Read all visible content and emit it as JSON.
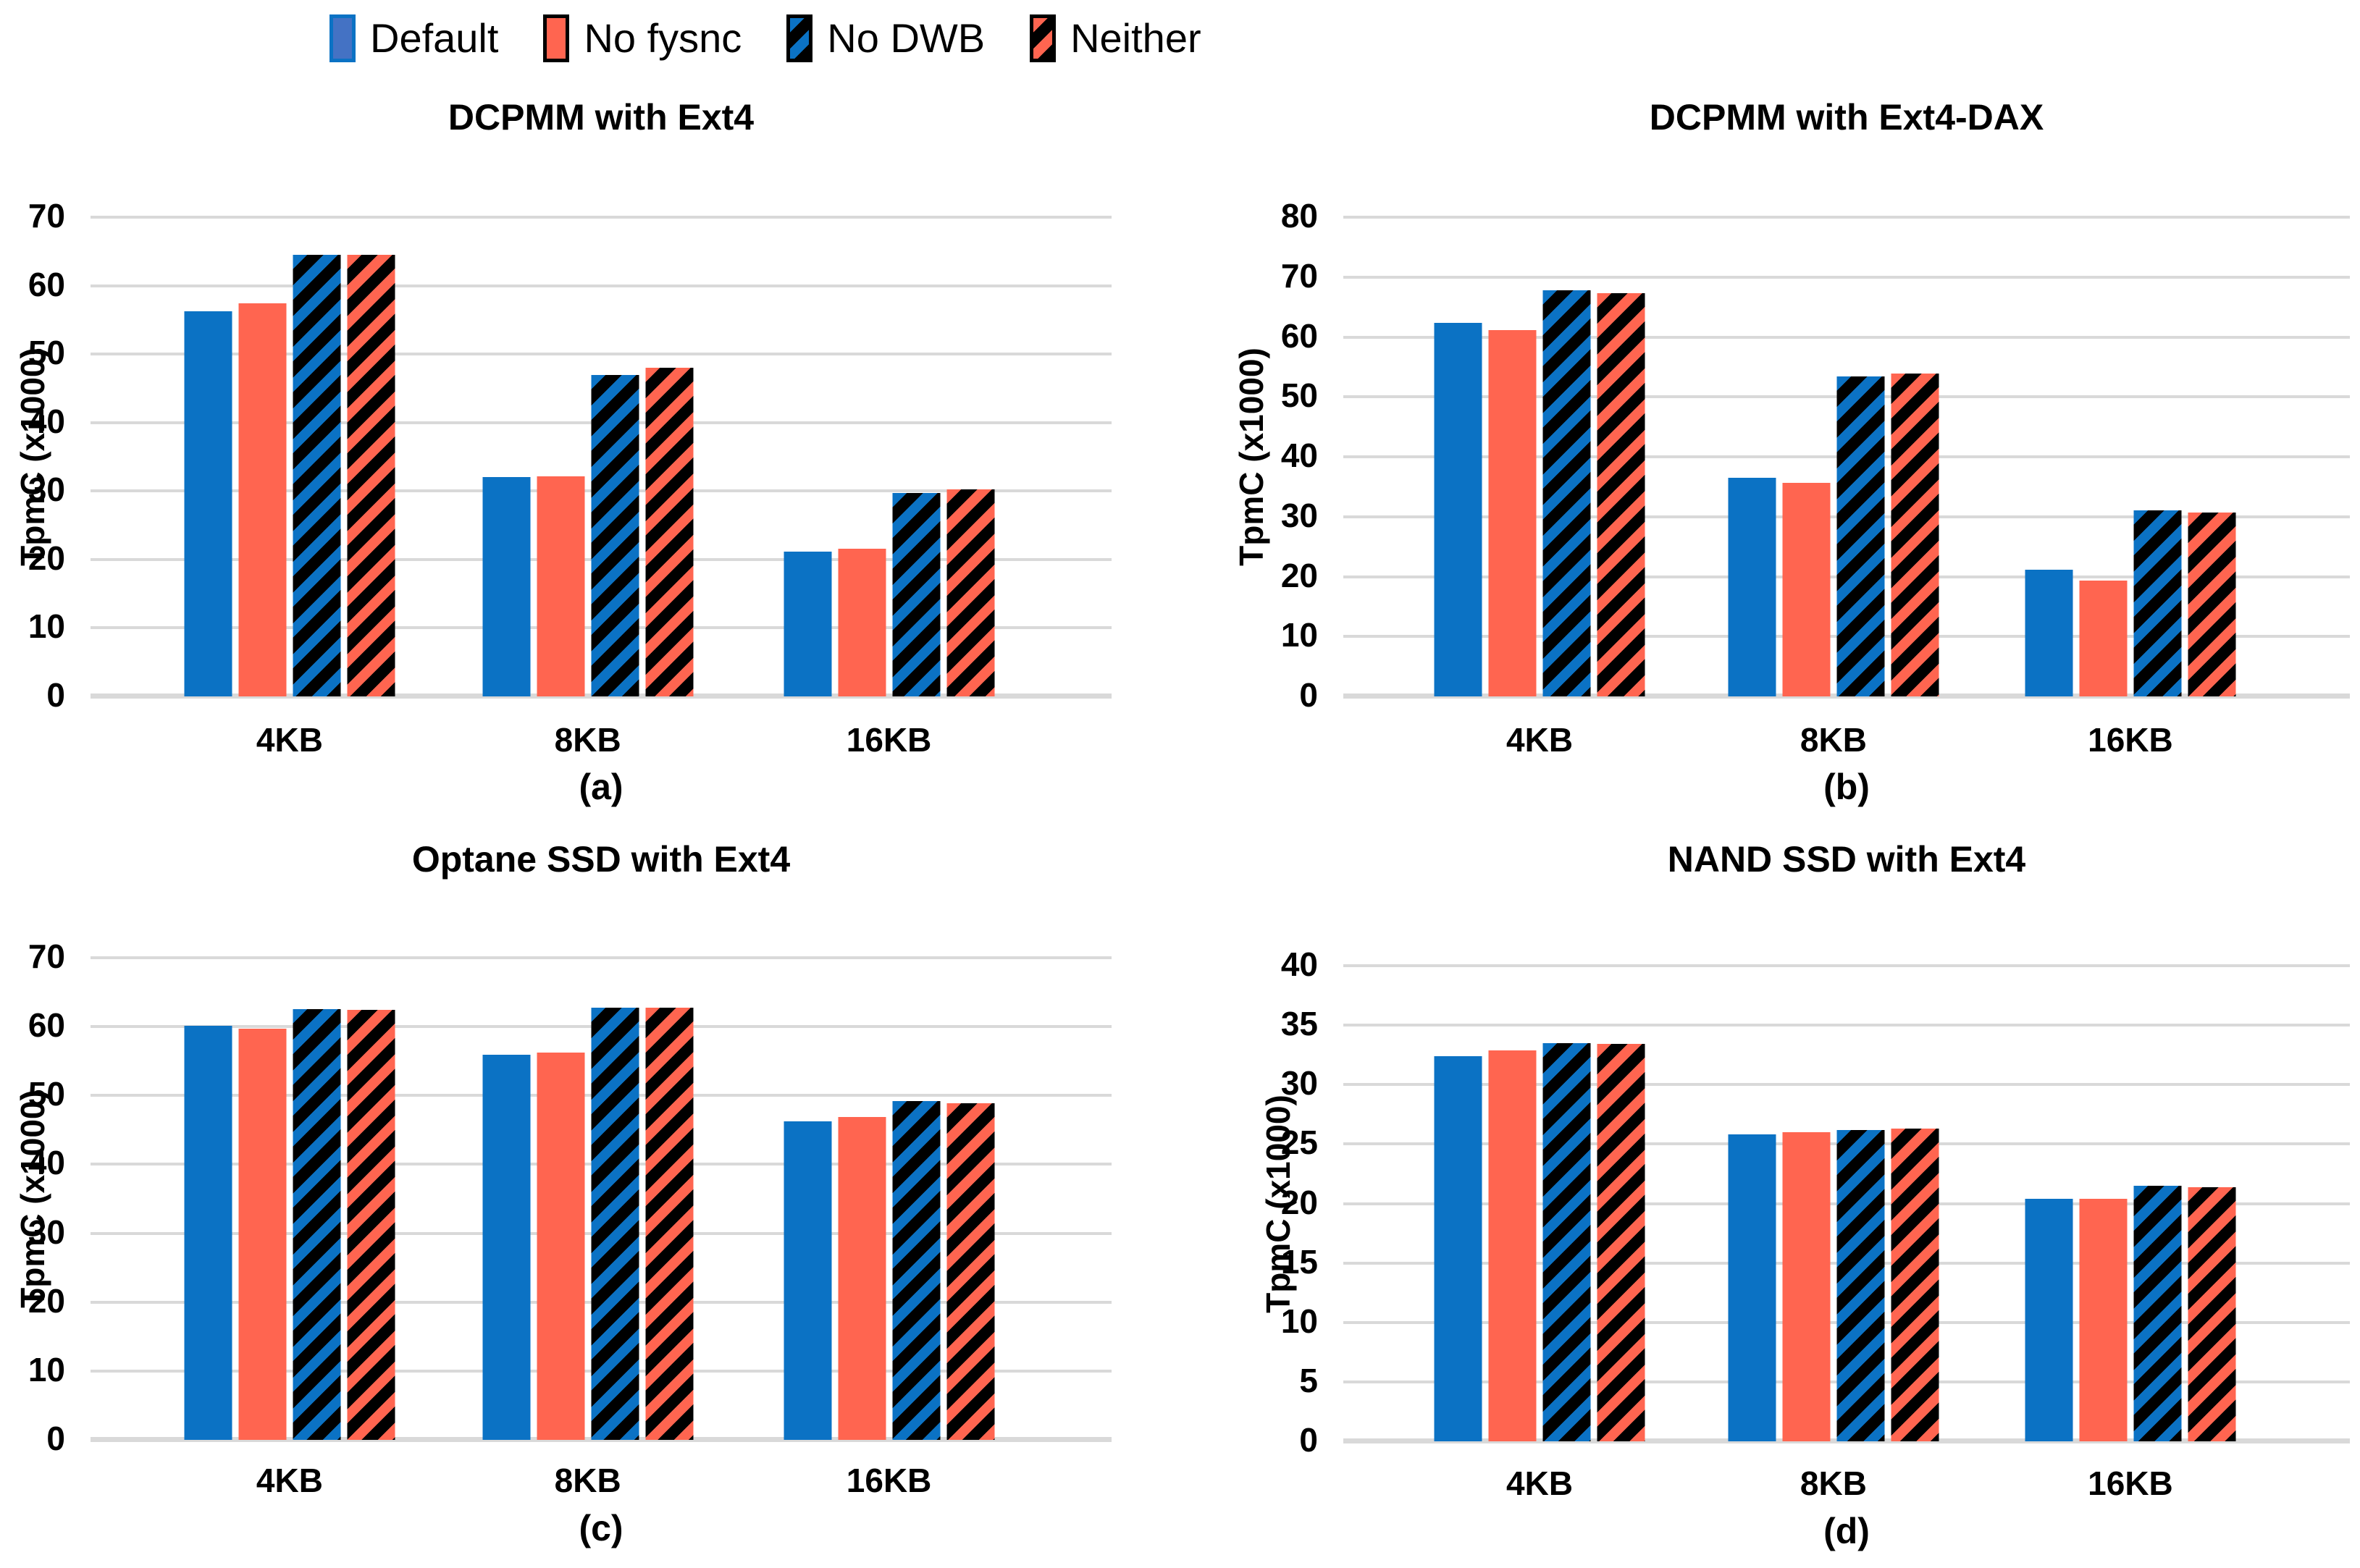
{
  "legend": {
    "items": [
      {
        "label": "Default",
        "style": "solid-blue-bordered"
      },
      {
        "label": "No fysnc",
        "style": "solid-red"
      },
      {
        "label": "No DWB",
        "style": "hatch-blue"
      },
      {
        "label": "Neither",
        "style": "hatch-red"
      }
    ]
  },
  "colors": {
    "bar_blue": "#0B72C4",
    "bar_red": "#FF6550",
    "hatch_black": "#000000",
    "legend_default_fill": "#4472C4",
    "legend_default_border": "#0B72C4",
    "gridline": "#D9D9D9",
    "text": "#000000"
  },
  "chart_data": [
    {
      "id": "a",
      "type": "bar",
      "title": "DCPMM with Ext4",
      "sublabel": "(a)",
      "ylabel": "TpmC (x1000)",
      "ylim": [
        0,
        70
      ],
      "ytick_step": 10,
      "grid": true,
      "legend_position": "top-shared",
      "categories": [
        "4KB",
        "8KB",
        "16KB"
      ],
      "series": [
        {
          "name": "Default",
          "values": [
            56.3,
            32.0,
            21.1
          ]
        },
        {
          "name": "No fysnc",
          "values": [
            57.4,
            32.1,
            21.6
          ]
        },
        {
          "name": "No DWB",
          "values": [
            64.5,
            47.0,
            29.7
          ]
        },
        {
          "name": "Neither",
          "values": [
            64.5,
            48.0,
            30.2
          ]
        }
      ]
    },
    {
      "id": "b",
      "type": "bar",
      "title": "DCPMM with Ext4-DAX",
      "sublabel": "(b)",
      "ylabel": "TpmC (x1000)",
      "ylim": [
        0,
        80
      ],
      "ytick_step": 10,
      "grid": true,
      "legend_position": "top-shared",
      "categories": [
        "4KB",
        "8KB",
        "16KB"
      ],
      "series": [
        {
          "name": "Default",
          "values": [
            62.4,
            36.5,
            21.2
          ]
        },
        {
          "name": "No fysnc",
          "values": [
            61.1,
            35.7,
            19.3
          ]
        },
        {
          "name": "No DWB",
          "values": [
            67.8,
            53.4,
            31.1
          ]
        },
        {
          "name": "Neither",
          "values": [
            67.3,
            53.9,
            30.7
          ]
        }
      ]
    },
    {
      "id": "c",
      "type": "bar",
      "title": "Optane SSD with Ext4",
      "sublabel": "(c)",
      "ylabel": "TpmC (x1000)",
      "ylim": [
        0,
        70
      ],
      "ytick_step": 10,
      "grid": true,
      "legend_position": "top-shared",
      "categories": [
        "4KB",
        "8KB",
        "16KB"
      ],
      "series": [
        {
          "name": "Default",
          "values": [
            60.1,
            55.9,
            46.2
          ]
        },
        {
          "name": "No fysnc",
          "values": [
            59.7,
            56.2,
            46.9
          ]
        },
        {
          "name": "No DWB",
          "values": [
            62.5,
            62.7,
            49.2
          ]
        },
        {
          "name": "Neither",
          "values": [
            62.4,
            62.8,
            48.9
          ]
        }
      ]
    },
    {
      "id": "d",
      "type": "bar",
      "title": "NAND SSD with Ext4",
      "sublabel": "(d)",
      "ylabel": "TpmC (x1000)",
      "ylim": [
        0,
        40
      ],
      "ytick_step": 5,
      "grid": true,
      "legend_position": "top-shared",
      "categories": [
        "4KB",
        "8KB",
        "16KB"
      ],
      "series": [
        {
          "name": "Default",
          "values": [
            32.4,
            25.8,
            20.4
          ]
        },
        {
          "name": "No fysnc",
          "values": [
            32.9,
            26.0,
            20.4
          ]
        },
        {
          "name": "No DWB",
          "values": [
            33.5,
            26.2,
            21.5
          ]
        },
        {
          "name": "Neither",
          "values": [
            33.4,
            26.3,
            21.4
          ]
        }
      ]
    }
  ]
}
